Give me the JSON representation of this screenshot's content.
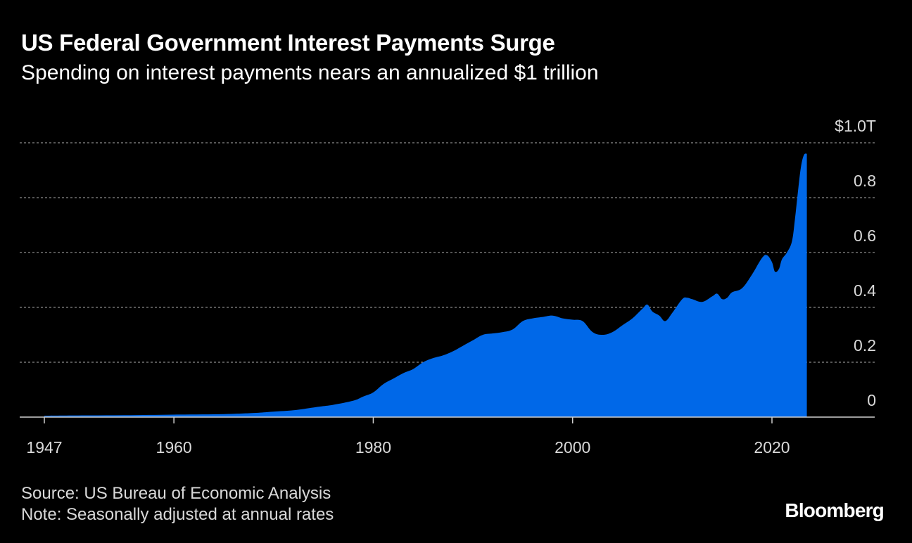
{
  "header": {
    "title": "US Federal Government Interest Payments Surge",
    "subtitle": "Spending on interest payments nears an annualized $1 trillion"
  },
  "footer": {
    "source": "Source: US Bureau of Economic Analysis",
    "note": "Note: Seasonally adjusted at annual rates",
    "brand": "Bloomberg"
  },
  "colors": {
    "background": "#000000",
    "area": "#0068E8",
    "grid": "#8a8a8a",
    "text": "#ffffff",
    "tick_text": "#d9d9d9"
  },
  "chart_data": {
    "type": "area",
    "title": "US Federal Government Interest Payments Surge",
    "subtitle": "Spending on interest payments nears an annualized $1 trillion",
    "xlabel": "",
    "ylabel": "",
    "unit": "trillion US dollars",
    "xlim": [
      1945,
      2029
    ],
    "ylim": [
      0,
      1.0
    ],
    "x_ticks": [
      1947,
      1960,
      1980,
      2000,
      2020
    ],
    "x_tick_labels": [
      "1947",
      "1960",
      "1980",
      "2000",
      "2020"
    ],
    "y_ticks": [
      0,
      0.2,
      0.4,
      0.6,
      0.8,
      1.0
    ],
    "y_tick_labels": [
      "0",
      "0.2",
      "0.4",
      "0.6",
      "0.8",
      "$1.0T"
    ],
    "y_axis_side": "right",
    "grid": true,
    "grid_style": "dotted horizontal",
    "legend": "none",
    "series": [
      {
        "x": [
          1947,
          1950,
          1955,
          1960,
          1965,
          1968,
          1970,
          1972,
          1974,
          1975,
          1976,
          1978,
          1979,
          1980,
          1981,
          1982,
          1983,
          1984,
          1985,
          1986,
          1987,
          1988,
          1989,
          1990,
          1991,
          1992,
          1993,
          1994,
          1995,
          1996,
          1997,
          1998,
          1999,
          2000,
          2001,
          2002,
          2003,
          2004,
          2005,
          2006,
          2007,
          2007.5,
          2008,
          2008.7,
          2009.3,
          2010,
          2011,
          2011.5,
          2012,
          2013,
          2014,
          2014.5,
          2015,
          2015.5,
          2016,
          2017,
          2018,
          2019,
          2019.5,
          2020,
          2020.3,
          2020.7,
          2021,
          2021.5,
          2022,
          2022.3,
          2022.6,
          2022.9,
          2023.2,
          2023.5
        ],
        "y": [
          0.005,
          0.006,
          0.007,
          0.009,
          0.011,
          0.015,
          0.02,
          0.025,
          0.035,
          0.04,
          0.045,
          0.06,
          0.075,
          0.09,
          0.12,
          0.14,
          0.16,
          0.175,
          0.2,
          0.215,
          0.225,
          0.24,
          0.26,
          0.28,
          0.3,
          0.305,
          0.31,
          0.32,
          0.35,
          0.36,
          0.365,
          0.37,
          0.36,
          0.355,
          0.35,
          0.31,
          0.3,
          0.31,
          0.335,
          0.36,
          0.395,
          0.41,
          0.385,
          0.37,
          0.35,
          0.38,
          0.43,
          0.435,
          0.43,
          0.42,
          0.44,
          0.45,
          0.43,
          0.435,
          0.455,
          0.47,
          0.52,
          0.58,
          0.59,
          0.565,
          0.53,
          0.54,
          0.575,
          0.6,
          0.64,
          0.72,
          0.82,
          0.91,
          0.955,
          0.96
        ]
      }
    ]
  }
}
